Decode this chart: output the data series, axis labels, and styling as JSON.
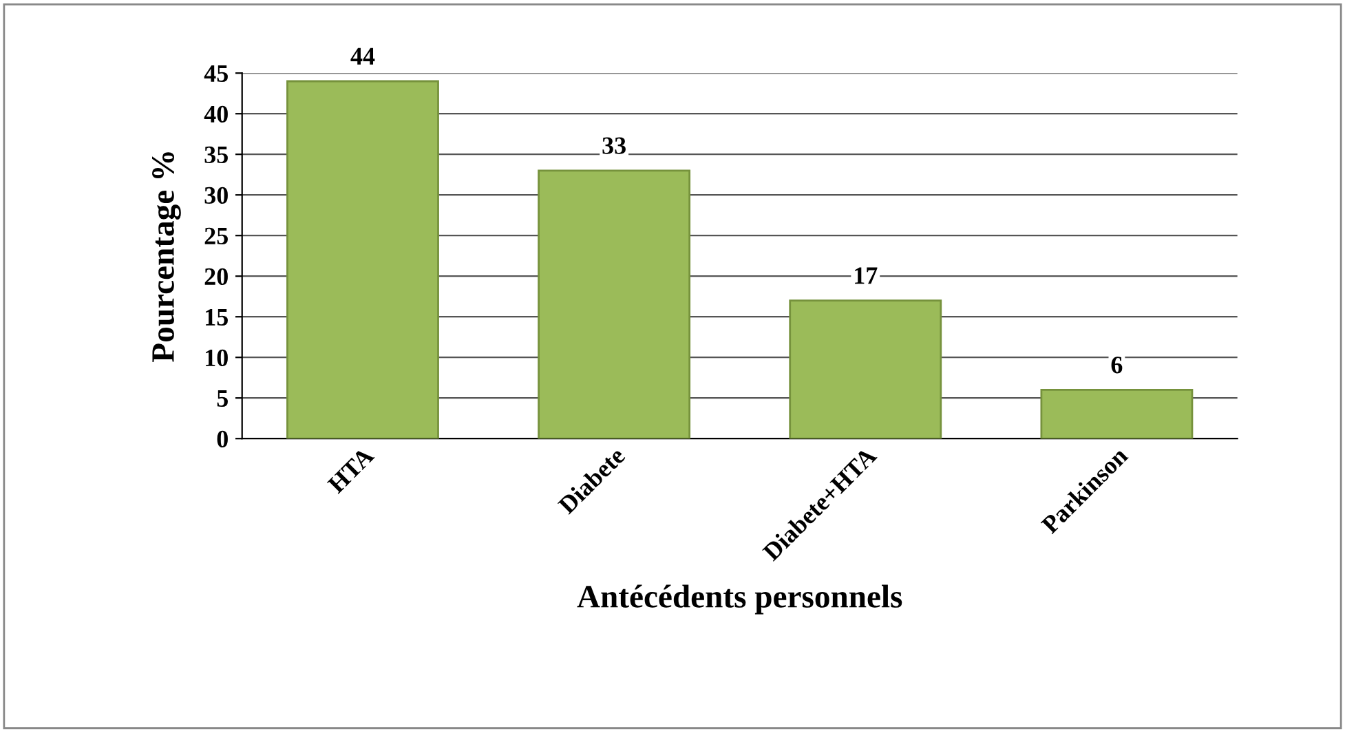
{
  "chart_data": {
    "type": "bar",
    "xlabel": "Antécédents personnels",
    "ylabel": "Pourcentage %",
    "categories": [
      "HTA",
      "Diabete",
      "Diabete+HTA",
      "Parkinson"
    ],
    "values": [
      44,
      33,
      17,
      6
    ],
    "color": "#9bbb59",
    "ylim": [
      0,
      45
    ],
    "yticks": [
      0,
      5,
      10,
      15,
      20,
      25,
      30,
      35,
      40,
      45
    ],
    "grid": "y",
    "data_labels": true
  }
}
